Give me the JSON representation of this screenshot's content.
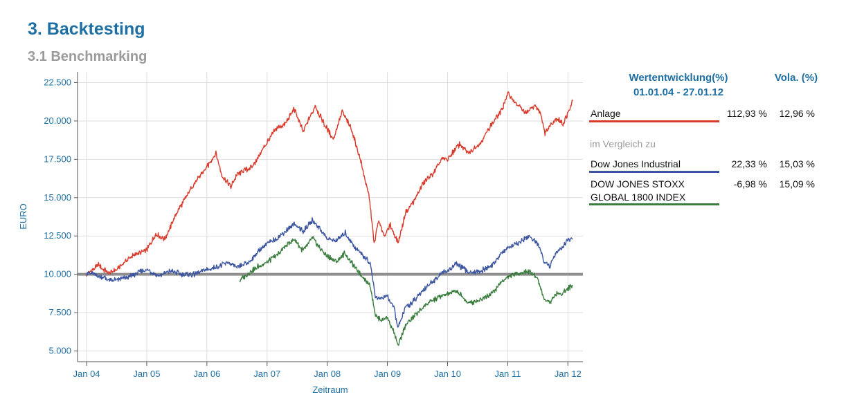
{
  "page": {
    "title": "3. Backtesting",
    "subtitle": "3.1 Benchmarking"
  },
  "legend": {
    "header_performance": "Wertentwicklung(%)",
    "header_period": "01.01.04 - 27.01.12",
    "header_vola": "Vola. (%)",
    "compare_label": "im Vergleich zu",
    "rows": [
      {
        "name": "Anlage",
        "performance": "112,93 %",
        "vola": "12,96 %",
        "color": "#d93a2b"
      },
      {
        "name": "Dow Jones Industrial",
        "performance": "22,33 %",
        "vola": "15,03 %",
        "color": "#3b55a0"
      },
      {
        "name_line1": "DOW JONES STOXX",
        "name_line2": "GLOBAL 1800 INDEX",
        "performance": "-6,98 %",
        "vola": "15,09 %",
        "color": "#3a7d3e"
      }
    ]
  },
  "chart_data": {
    "type": "line",
    "xlabel": "Zeitraum",
    "ylabel": "EURO",
    "x_ticks": [
      "Jan 04",
      "Jan 05",
      "Jan 06",
      "Jan 07",
      "Jan 08",
      "Jan 09",
      "Jan 10",
      "Jan 11",
      "Jan 12"
    ],
    "y_ticks": [
      "5.000",
      "7.500",
      "10.000",
      "12.500",
      "15.000",
      "17.500",
      "20.000",
      "22.500"
    ],
    "ylim": [
      4300,
      23200
    ],
    "xlim": [
      2003.85,
      2012.25
    ],
    "grid": true,
    "reference_line": 10000,
    "series": [
      {
        "name": "Anlage",
        "color": "#d93a2b",
        "points": [
          [
            2004.0,
            10000
          ],
          [
            2004.2,
            10600
          ],
          [
            2004.35,
            10100
          ],
          [
            2004.5,
            10300
          ],
          [
            2004.75,
            11200
          ],
          [
            2005.0,
            11600
          ],
          [
            2005.15,
            12600
          ],
          [
            2005.3,
            12300
          ],
          [
            2005.5,
            14000
          ],
          [
            2005.75,
            15700
          ],
          [
            2006.0,
            17000
          ],
          [
            2006.15,
            17900
          ],
          [
            2006.25,
            16400
          ],
          [
            2006.4,
            15700
          ],
          [
            2006.5,
            16500
          ],
          [
            2006.75,
            17000
          ],
          [
            2007.0,
            18600
          ],
          [
            2007.15,
            19500
          ],
          [
            2007.3,
            19800
          ],
          [
            2007.45,
            20800
          ],
          [
            2007.6,
            19300
          ],
          [
            2007.8,
            21000
          ],
          [
            2007.95,
            19800
          ],
          [
            2008.1,
            18800
          ],
          [
            2008.25,
            20600
          ],
          [
            2008.4,
            19500
          ],
          [
            2008.55,
            17500
          ],
          [
            2008.7,
            15000
          ],
          [
            2008.78,
            12000
          ],
          [
            2008.85,
            13500
          ],
          [
            2008.95,
            12500
          ],
          [
            2009.05,
            13200
          ],
          [
            2009.18,
            12000
          ],
          [
            2009.3,
            14000
          ],
          [
            2009.45,
            14800
          ],
          [
            2009.6,
            16000
          ],
          [
            2009.75,
            16500
          ],
          [
            2009.9,
            17500
          ],
          [
            2010.0,
            17500
          ],
          [
            2010.2,
            18500
          ],
          [
            2010.35,
            17900
          ],
          [
            2010.55,
            18600
          ],
          [
            2010.75,
            19900
          ],
          [
            2010.9,
            20700
          ],
          [
            2011.0,
            21800
          ],
          [
            2011.15,
            21100
          ],
          [
            2011.3,
            20500
          ],
          [
            2011.45,
            21000
          ],
          [
            2011.55,
            20500
          ],
          [
            2011.62,
            19200
          ],
          [
            2011.72,
            19800
          ],
          [
            2011.82,
            20200
          ],
          [
            2011.92,
            19800
          ],
          [
            2012.0,
            20500
          ],
          [
            2012.08,
            21300
          ]
        ]
      },
      {
        "name": "Dow Jones Industrial",
        "color": "#3b55a0",
        "points": [
          [
            2004.0,
            10100
          ],
          [
            2004.2,
            9900
          ],
          [
            2004.4,
            9600
          ],
          [
            2004.6,
            9700
          ],
          [
            2004.8,
            10000
          ],
          [
            2005.0,
            10300
          ],
          [
            2005.2,
            9900
          ],
          [
            2005.4,
            10200
          ],
          [
            2005.6,
            10000
          ],
          [
            2005.8,
            10000
          ],
          [
            2006.0,
            10300
          ],
          [
            2006.2,
            10500
          ],
          [
            2006.35,
            10800
          ],
          [
            2006.5,
            10400
          ],
          [
            2006.7,
            10800
          ],
          [
            2006.9,
            11700
          ],
          [
            2007.0,
            12000
          ],
          [
            2007.15,
            12300
          ],
          [
            2007.3,
            12800
          ],
          [
            2007.45,
            13300
          ],
          [
            2007.6,
            12800
          ],
          [
            2007.75,
            13500
          ],
          [
            2007.9,
            12900
          ],
          [
            2008.0,
            12300
          ],
          [
            2008.15,
            12200
          ],
          [
            2008.3,
            12700
          ],
          [
            2008.45,
            11800
          ],
          [
            2008.6,
            11200
          ],
          [
            2008.72,
            10700
          ],
          [
            2008.8,
            8500
          ],
          [
            2008.9,
            8400
          ],
          [
            2009.0,
            8600
          ],
          [
            2009.1,
            7900
          ],
          [
            2009.18,
            6500
          ],
          [
            2009.3,
            7800
          ],
          [
            2009.45,
            8300
          ],
          [
            2009.6,
            9000
          ],
          [
            2009.75,
            9500
          ],
          [
            2009.9,
            10100
          ],
          [
            2010.0,
            10200
          ],
          [
            2010.15,
            10700
          ],
          [
            2010.35,
            10100
          ],
          [
            2010.55,
            10200
          ],
          [
            2010.75,
            10600
          ],
          [
            2010.9,
            11400
          ],
          [
            2011.0,
            11700
          ],
          [
            2011.2,
            12100
          ],
          [
            2011.35,
            12500
          ],
          [
            2011.5,
            12000
          ],
          [
            2011.6,
            10900
          ],
          [
            2011.7,
            10500
          ],
          [
            2011.8,
            11400
          ],
          [
            2011.92,
            11800
          ],
          [
            2012.0,
            12200
          ],
          [
            2012.08,
            12300
          ]
        ]
      },
      {
        "name": "DOW JONES STOXX GLOBAL 1800 INDEX",
        "color": "#3a7d3e",
        "points": [
          [
            2006.55,
            9600
          ],
          [
            2006.7,
            10100
          ],
          [
            2006.85,
            10500
          ],
          [
            2007.0,
            10800
          ],
          [
            2007.15,
            11200
          ],
          [
            2007.3,
            11800
          ],
          [
            2007.45,
            12300
          ],
          [
            2007.6,
            11500
          ],
          [
            2007.75,
            12400
          ],
          [
            2007.9,
            11600
          ],
          [
            2008.0,
            11200
          ],
          [
            2008.15,
            10800
          ],
          [
            2008.3,
            11400
          ],
          [
            2008.45,
            10500
          ],
          [
            2008.6,
            9800
          ],
          [
            2008.72,
            9200
          ],
          [
            2008.8,
            7300
          ],
          [
            2008.9,
            7000
          ],
          [
            2009.0,
            7200
          ],
          [
            2009.1,
            6300
          ],
          [
            2009.18,
            5300
          ],
          [
            2009.3,
            6700
          ],
          [
            2009.45,
            7300
          ],
          [
            2009.6,
            7900
          ],
          [
            2009.75,
            8300
          ],
          [
            2009.9,
            8600
          ],
          [
            2010.0,
            8700
          ],
          [
            2010.15,
            8900
          ],
          [
            2010.35,
            8100
          ],
          [
            2010.55,
            8400
          ],
          [
            2010.75,
            8800
          ],
          [
            2010.9,
            9500
          ],
          [
            2011.0,
            9800
          ],
          [
            2011.2,
            10100
          ],
          [
            2011.35,
            10200
          ],
          [
            2011.5,
            9700
          ],
          [
            2011.6,
            8400
          ],
          [
            2011.7,
            8200
          ],
          [
            2011.8,
            8700
          ],
          [
            2011.92,
            8800
          ],
          [
            2012.0,
            9100
          ],
          [
            2012.08,
            9300
          ]
        ]
      }
    ]
  }
}
